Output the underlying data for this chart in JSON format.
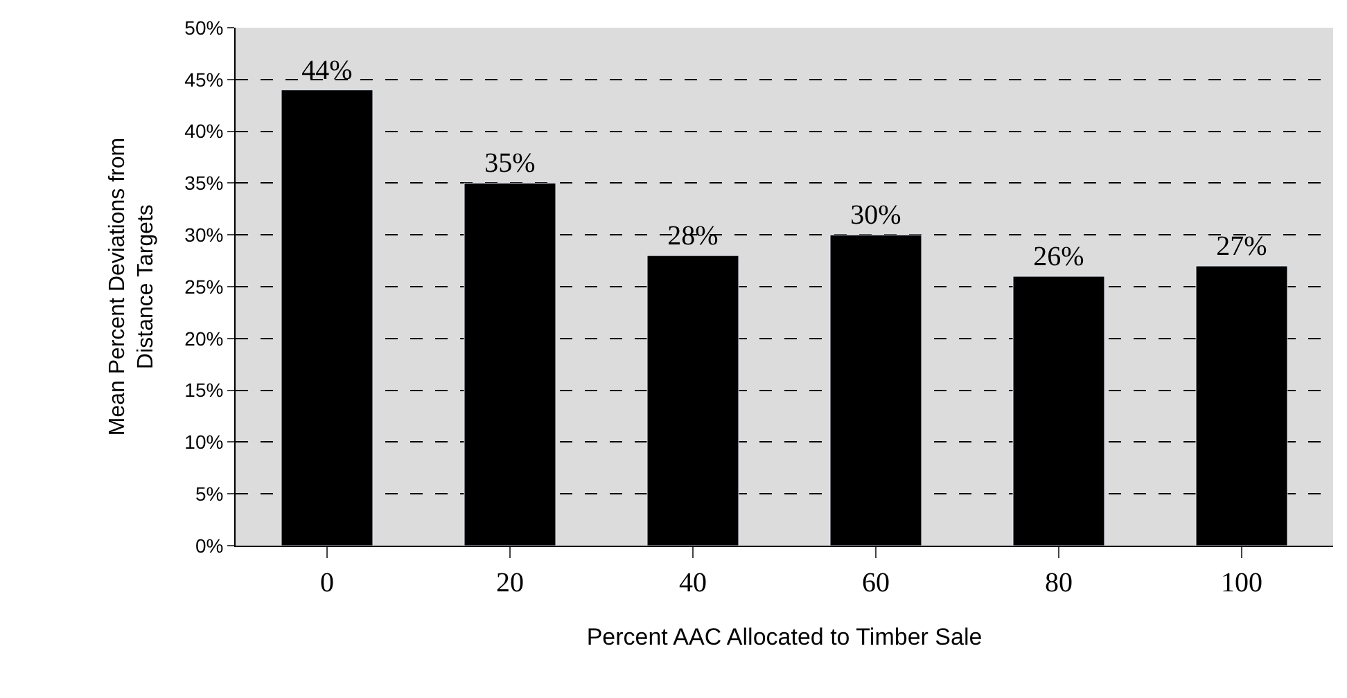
{
  "chart_data": {
    "type": "bar",
    "xlabel": "Percent AAC Allocated to Timber Sale",
    "ylabel": "Mean Percent Deviations from\nDistance Targets",
    "categories": [
      "0",
      "20",
      "40",
      "60",
      "80",
      "100"
    ],
    "values": [
      44,
      35,
      28,
      30,
      26,
      27
    ],
    "value_labels": [
      "44%",
      "35%",
      "28%",
      "30%",
      "26%",
      "27%"
    ],
    "color": "#000000",
    "ylim": [
      0,
      50
    ],
    "yticks": [
      {
        "value": 0,
        "label": "0%"
      },
      {
        "value": 5,
        "label": "5%"
      },
      {
        "value": 10,
        "label": "10%"
      },
      {
        "value": 15,
        "label": "15%"
      },
      {
        "value": 20,
        "label": "20%"
      },
      {
        "value": 25,
        "label": "25%"
      },
      {
        "value": 30,
        "label": "30%"
      },
      {
        "value": 35,
        "label": "35%"
      },
      {
        "value": 40,
        "label": "40%"
      },
      {
        "value": 45,
        "label": "45%"
      },
      {
        "value": 50,
        "label": "50%"
      }
    ],
    "grid": "y"
  }
}
